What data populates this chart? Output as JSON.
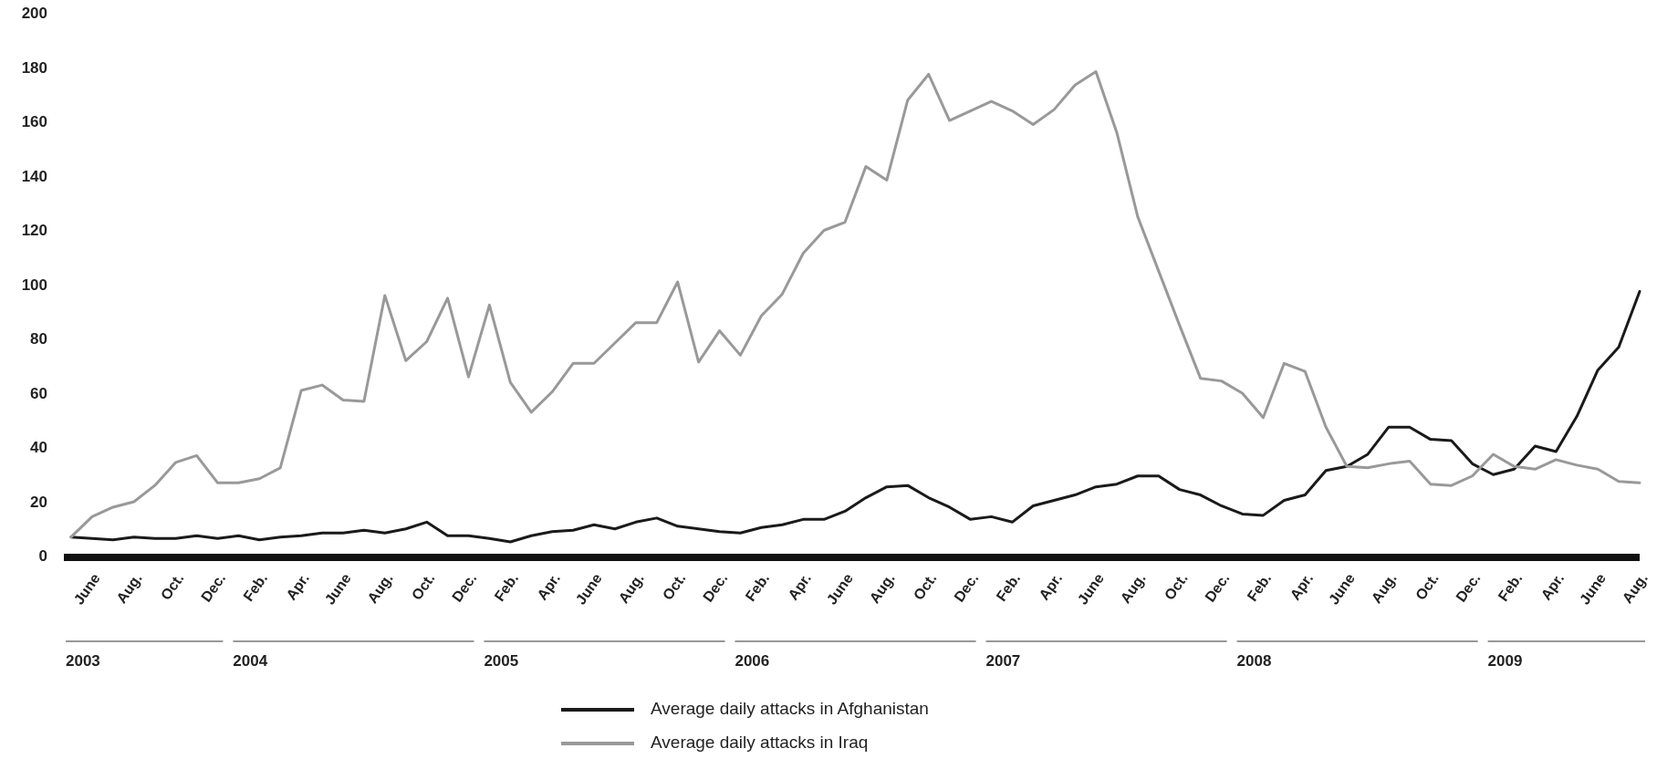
{
  "chart_data": {
    "type": "line",
    "categories": [
      null,
      "June",
      null,
      "Aug.",
      null,
      "Oct.",
      null,
      "Dec.",
      null,
      "Feb.",
      null,
      "Apr.",
      null,
      "June",
      null,
      "Aug.",
      null,
      "Oct.",
      null,
      "Dec.",
      null,
      "Feb.",
      null,
      "Apr.",
      null,
      "June",
      null,
      "Aug.",
      null,
      "Oct.",
      null,
      "Dec.",
      null,
      "Feb.",
      null,
      "Apr.",
      null,
      "June",
      null,
      "Aug.",
      null,
      "Oct.",
      null,
      "Dec.",
      null,
      "Feb.",
      null,
      "Apr.",
      null,
      "June",
      null,
      "Aug.",
      null,
      "Oct.",
      null,
      "Dec.",
      null,
      "Feb.",
      null,
      "Apr.",
      null,
      "June",
      null,
      "Aug.",
      null,
      "Oct.",
      null,
      "Dec.",
      null,
      "Feb.",
      null,
      "Apr.",
      null,
      "June",
      null,
      "Aug."
    ],
    "series": [
      {
        "name": "Average daily attacks in Afghanistan",
        "color": "#1a1a1a",
        "values": [
          7.5,
          7,
          6.5,
          7.5,
          7,
          7,
          8,
          7,
          8,
          6.5,
          7.5,
          8,
          9,
          9,
          10,
          9,
          10.5,
          13,
          8,
          8,
          7,
          5.7,
          8,
          9.5,
          10,
          12,
          10.5,
          13,
          14.5,
          11.5,
          10.5,
          9.5,
          9,
          11,
          12,
          14,
          14,
          17,
          22,
          26,
          26.5,
          22,
          18.5,
          14,
          15,
          13,
          19,
          21,
          23,
          26,
          27,
          30,
          30,
          25,
          23,
          19,
          16,
          15.5,
          21,
          23,
          32,
          33.5,
          38,
          48,
          48,
          43.5,
          43,
          34.5,
          30.5,
          32.5,
          41,
          39,
          52,
          69,
          77.5,
          98
        ]
      },
      {
        "name": "Average daily attacks in Iraq",
        "color": "#999999",
        "values": [
          7.5,
          15,
          18.5,
          20.5,
          26.5,
          35,
          37.5,
          27.5,
          27.5,
          29,
          33,
          61.5,
          63.5,
          58,
          57.5,
          96.5,
          72.5,
          79.5,
          95.5,
          66.5,
          93,
          64.5,
          53.5,
          61,
          71.5,
          71.5,
          79,
          86.5,
          86.5,
          101.5,
          72,
          83.5,
          74.5,
          89,
          97,
          112,
          120.5,
          123.5,
          144,
          139,
          168.5,
          178,
          161,
          164.5,
          168,
          164.5,
          159.5,
          165,
          174,
          179,
          156.5,
          125.5,
          105.5,
          85.5,
          66,
          65,
          60.5,
          51.5,
          71.5,
          68.5,
          48,
          33.5,
          33,
          34.5,
          35.5,
          27,
          26.5,
          30,
          38,
          33.5,
          32.5,
          36,
          34,
          32.5,
          28,
          27.5
        ]
      }
    ],
    "ylim": [
      0,
      200
    ],
    "yticks": [
      0,
      20,
      40,
      60,
      80,
      100,
      120,
      140,
      160,
      180,
      200
    ],
    "grid": false,
    "legend": "bottom",
    "marker": "none",
    "line_style": "solid",
    "annotations": [
      "2003",
      "2004",
      "2005",
      "2006",
      "2007",
      "2008",
      "2009"
    ]
  }
}
